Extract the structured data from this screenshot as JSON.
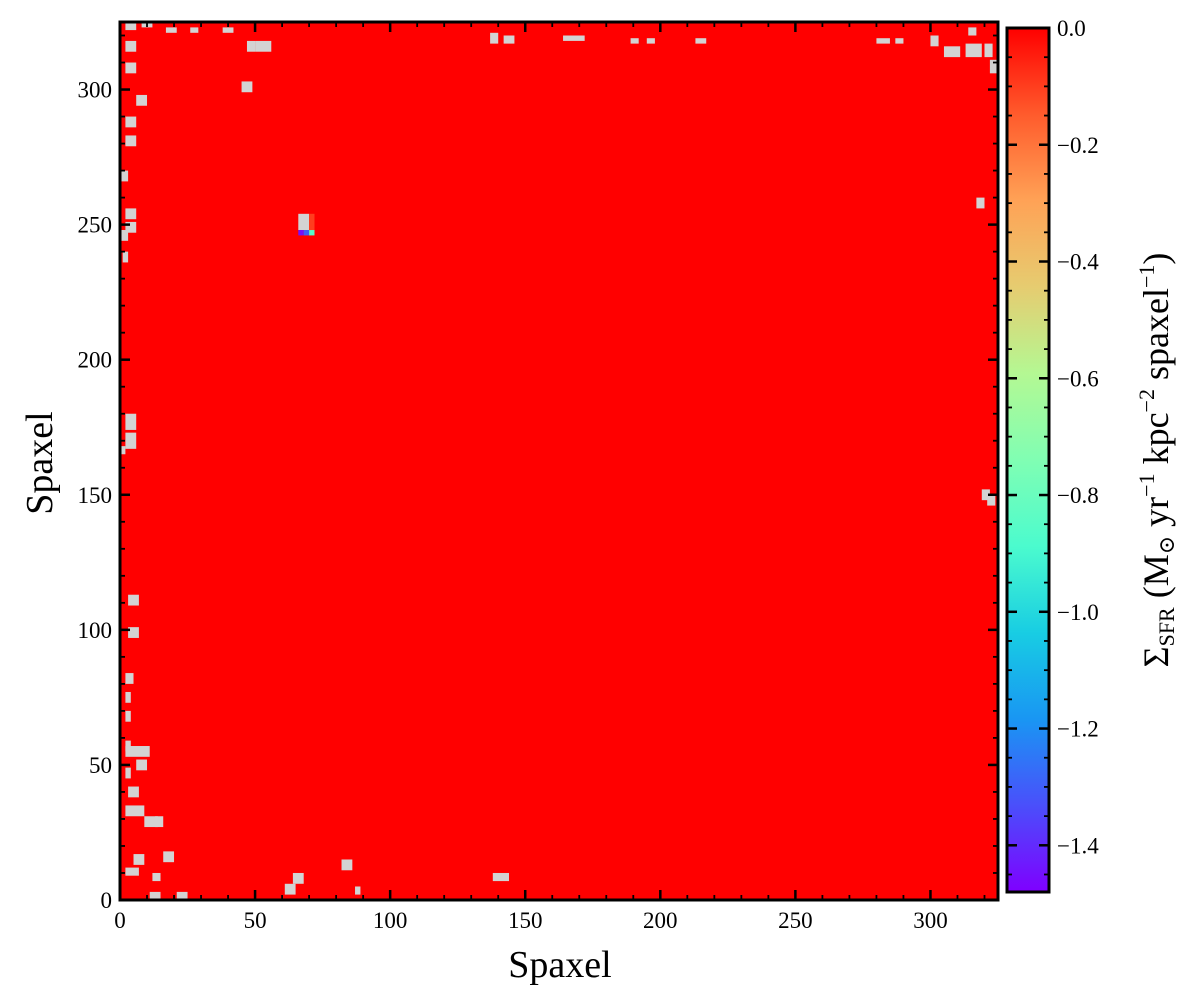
{
  "chart_data": {
    "type": "heatmap",
    "title": "",
    "xlabel": "Spaxel",
    "ylabel": "Spaxel",
    "xlim": [
      0,
      325
    ],
    "ylim": [
      0,
      325
    ],
    "x_ticks": [
      0,
      50,
      100,
      150,
      200,
      250,
      300
    ],
    "y_ticks": [
      0,
      50,
      100,
      150,
      200,
      250,
      300
    ],
    "x_tick_labels": [
      "0",
      "50",
      "100",
      "150",
      "200",
      "250",
      "300"
    ],
    "y_tick_labels": [
      "0",
      "50",
      "100",
      "150",
      "200",
      "250",
      "300"
    ],
    "colorbar": {
      "label_main": "Σ",
      "label_sub": "SFR",
      "label_rest": " (M",
      "label_sun": "⊙",
      "label_yr": " yr",
      "label_exp1": "−1",
      "label_kpc": " kpc",
      "label_exp2": "−2",
      "label_spx": " spaxel",
      "label_exp3": "−1",
      "label_close": ")",
      "range": [
        -1.48,
        0.0
      ],
      "ticks": [
        0.0,
        -0.2,
        -0.4,
        -0.6,
        -0.8,
        -1.0,
        -1.2,
        -1.4
      ],
      "tick_labels": [
        "0.0",
        "−0.2",
        "−0.4",
        "−0.6",
        "−0.8",
        "−1.0",
        "−1.2",
        "−1.4"
      ],
      "colormap": "rainbow",
      "colormap_stops": [
        "#7f00ff",
        "#4a4ffb",
        "#1996f3",
        "#18cde3",
        "#4bfbce",
        "#80feb3",
        "#b4f893",
        "#e6cc70",
        "#ffa256",
        "#ff5b2c",
        "#ff0000"
      ]
    },
    "background_value": 0.0,
    "nan_color": "#d3d3d3",
    "nan_cells": [
      [
        2,
        322,
        4,
        4
      ],
      [
        8,
        323,
        4,
        3
      ],
      [
        17,
        321,
        4,
        2
      ],
      [
        26,
        321,
        3,
        2
      ],
      [
        38,
        321,
        4,
        2
      ],
      [
        47,
        314,
        3,
        4
      ],
      [
        50,
        314,
        6,
        4
      ],
      [
        2,
        314,
        4,
        4
      ],
      [
        2,
        306,
        4,
        4
      ],
      [
        2,
        286,
        4,
        4
      ],
      [
        2,
        279,
        4,
        4
      ],
      [
        6,
        294,
        4,
        4
      ],
      [
        45,
        299,
        4,
        4
      ],
      [
        0,
        266,
        3,
        4
      ],
      [
        2,
        252,
        4,
        4
      ],
      [
        0,
        244,
        3,
        4
      ],
      [
        1,
        236,
        2,
        4
      ],
      [
        2,
        247,
        4,
        4
      ],
      [
        66,
        248,
        4,
        6
      ],
      [
        2,
        174,
        4,
        6
      ],
      [
        2,
        167,
        4,
        6
      ],
      [
        0,
        165,
        2,
        3
      ],
      [
        3,
        109,
        4,
        4
      ],
      [
        3,
        97,
        4,
        4
      ],
      [
        2,
        80,
        3,
        4
      ],
      [
        2,
        73,
        2,
        4
      ],
      [
        2,
        66,
        2,
        4
      ],
      [
        2,
        55,
        2,
        4
      ],
      [
        2,
        53,
        9,
        4
      ],
      [
        6,
        48,
        4,
        4
      ],
      [
        2,
        45,
        2,
        4
      ],
      [
        3,
        38,
        4,
        4
      ],
      [
        2,
        31,
        7,
        4
      ],
      [
        9,
        27,
        5,
        4
      ],
      [
        13,
        27,
        3,
        4
      ],
      [
        5,
        13,
        4,
        4
      ],
      [
        16,
        14,
        4,
        4
      ],
      [
        2,
        9,
        5,
        3
      ],
      [
        12,
        7,
        3,
        3
      ],
      [
        11,
        0,
        4,
        3
      ],
      [
        21,
        0,
        4,
        3
      ],
      [
        61,
        2,
        4,
        4
      ],
      [
        64,
        6,
        4,
        4
      ],
      [
        82,
        11,
        4,
        4
      ],
      [
        87,
        2,
        2,
        3
      ],
      [
        138,
        7,
        6,
        3
      ],
      [
        137,
        317,
        3,
        4
      ],
      [
        142,
        317,
        4,
        3
      ],
      [
        164,
        318,
        8,
        2
      ],
      [
        189,
        317,
        3,
        2
      ],
      [
        195,
        317,
        3,
        2
      ],
      [
        213,
        317,
        4,
        2
      ],
      [
        280,
        317,
        5,
        2
      ],
      [
        287,
        317,
        3,
        2
      ],
      [
        300,
        316,
        3,
        4
      ],
      [
        305,
        312,
        6,
        4
      ],
      [
        313,
        312,
        6,
        5
      ],
      [
        320,
        312,
        3,
        5
      ],
      [
        322,
        306,
        3,
        5
      ],
      [
        317,
        256,
        3,
        4
      ],
      [
        319,
        148,
        3,
        4
      ],
      [
        321,
        146,
        3,
        4
      ],
      [
        314,
        320,
        3,
        3
      ]
    ],
    "valued_cells": [
      {
        "x": 66,
        "y": 246,
        "w": 2,
        "h": 2,
        "value": -1.45
      },
      {
        "x": 68,
        "y": 246,
        "w": 2,
        "h": 2,
        "value": -1.3
      },
      {
        "x": 70,
        "y": 246,
        "w": 2,
        "h": 2,
        "value": -0.85
      },
      {
        "x": 70,
        "y": 248,
        "w": 2,
        "h": 6,
        "value": -0.1
      }
    ]
  }
}
